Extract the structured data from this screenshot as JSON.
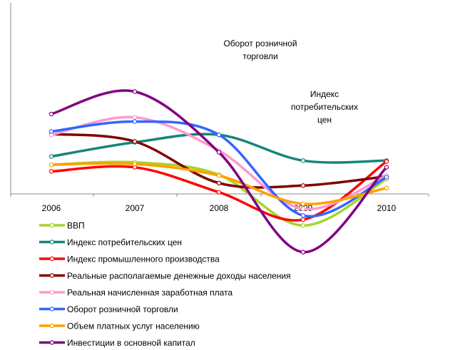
{
  "chart_data": {
    "type": "line",
    "categories": [
      "2006",
      "2007",
      "2008",
      "2009",
      "2010"
    ],
    "ylim": [
      -8,
      12
    ],
    "grid": false,
    "legend_position": "bottom",
    "series": [
      {
        "name": "ВВП",
        "color": "#a6d42b",
        "values": [
          3.5,
          3.8,
          2.3,
          -3.8,
          1.8
        ]
      },
      {
        "name": "Индекс потребительских цен",
        "color": "#16857a",
        "values": [
          4.5,
          6.2,
          7.1,
          4.0,
          4.0
        ]
      },
      {
        "name": "Индекс промышленного производства",
        "color": "#ff0000",
        "values": [
          2.7,
          3.2,
          0.2,
          -3.1,
          3.9
        ]
      },
      {
        "name": "Реальные располагаемые денежные доходы населения",
        "color": "#800000",
        "values": [
          7.2,
          6.3,
          1.3,
          1.0,
          2.1
        ]
      },
      {
        "name": "Реальная начисленная заработная плата",
        "color": "#ff99cc",
        "values": [
          7.1,
          9.2,
          5.2,
          -1.8,
          2.2
        ]
      },
      {
        "name": "Оборот розничной торговли",
        "color": "#3366ff",
        "values": [
          7.5,
          8.7,
          7.1,
          -2.6,
          2.0
        ]
      },
      {
        "name": "Объем платных услуг населению",
        "color": "#ffa000",
        "values": [
          3.5,
          3.6,
          2.2,
          -1.2,
          0.7
        ]
      },
      {
        "name": "Инвестиции в основной капитал",
        "color": "#800080",
        "values": [
          9.6,
          12.3,
          5.0,
          -7.0,
          3.2
        ]
      }
    ],
    "annotations": [
      {
        "text_lines": [
          "Оборот розничной",
          "торговли"
        ],
        "series": "Оборот розничной торговли"
      },
      {
        "text_lines": [
          "Индекс",
          "потребительских",
          "цен"
        ],
        "series": "Индекс потребительских цен"
      }
    ]
  }
}
